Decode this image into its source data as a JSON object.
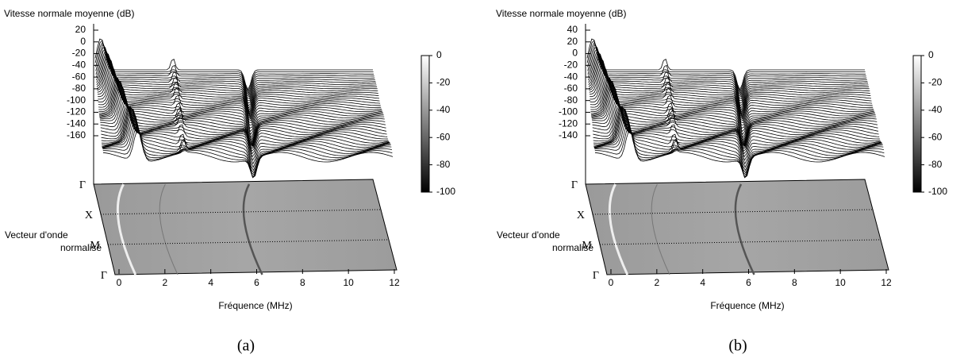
{
  "chart_data": [
    {
      "type": "surface3d",
      "title": "Vitesse normale moyenne (dB)",
      "zlim": [
        -160,
        20
      ],
      "zticks": [
        20,
        0,
        -20,
        -40,
        -60,
        -80,
        -100,
        -120,
        -140,
        -160
      ],
      "xlabel": "Fréquence (MHz)",
      "xlim": [
        0,
        12
      ],
      "xticks": [
        0,
        2,
        4,
        6,
        8,
        10,
        12
      ],
      "ylabel": [
        "Vecteur d'onde",
        "normalisé"
      ],
      "categories": [
        "Γ",
        "X",
        "M",
        "Γ"
      ],
      "clim": [
        -100,
        0
      ],
      "cticks": [
        0,
        -20,
        -40,
        -60,
        -80,
        -100
      ],
      "caption": "(a)"
    },
    {
      "type": "surface3d",
      "title": "Vitesse normale moyenne (dB)",
      "zlim": [
        -140,
        40
      ],
      "zticks": [
        40,
        20,
        0,
        -20,
        -40,
        -60,
        -80,
        -100,
        -120,
        -140
      ],
      "xlabel": "Fréquence (MHz)",
      "xlim": [
        0,
        12
      ],
      "xticks": [
        0,
        2,
        4,
        6,
        8,
        10,
        12
      ],
      "ylabel": [
        "Vecteur d'onde",
        "normalisé"
      ],
      "categories": [
        "Γ",
        "X",
        "M",
        "Γ"
      ],
      "clim": [
        -100,
        0
      ],
      "cticks": [
        0,
        -20,
        -40,
        -60,
        -80,
        -100
      ],
      "caption": "(b)"
    }
  ]
}
